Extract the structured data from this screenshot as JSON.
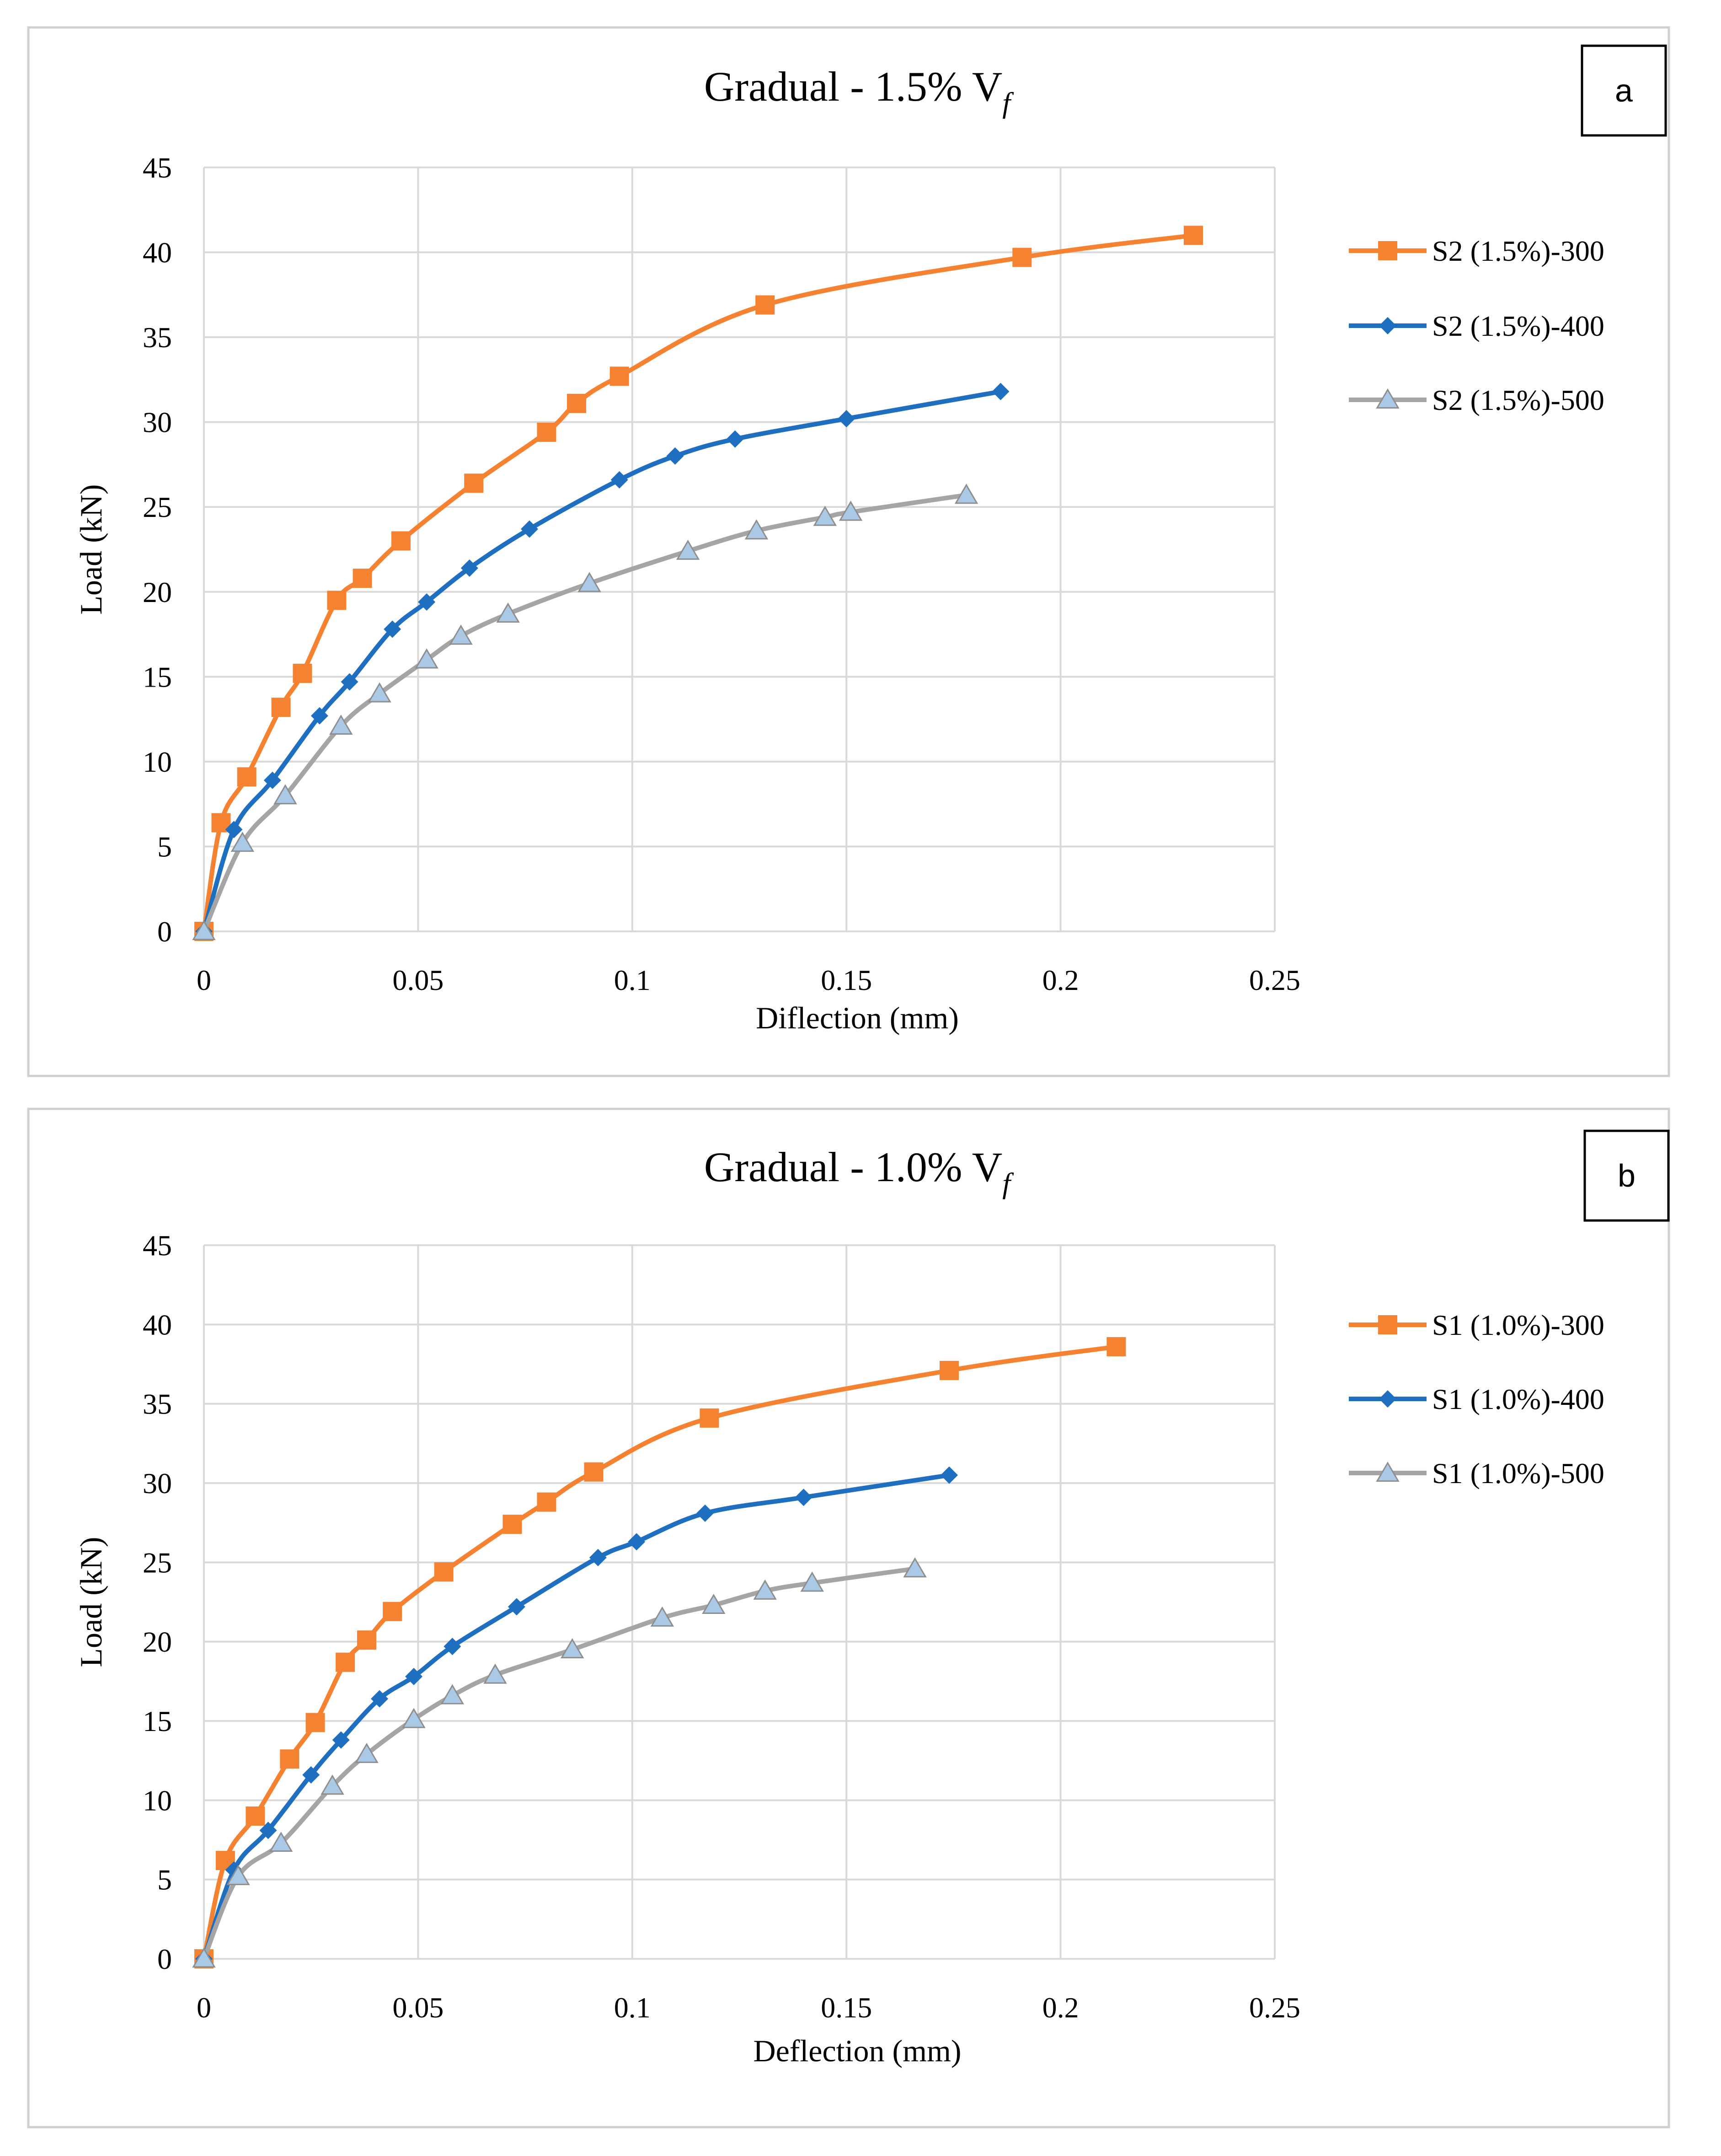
{
  "chart_data": [
    {
      "type": "line",
      "panel_label": "a",
      "title": "Gradual - 1.5% V",
      "title_subscript": "f",
      "xlabel": "Diflection (mm)",
      "ylabel": "Load (kN)",
      "xlim": [
        0,
        0.25
      ],
      "ylim": [
        0,
        45
      ],
      "x_ticks": [
        0,
        0.05,
        0.1,
        0.15,
        0.2,
        0.25
      ],
      "x_tick_labels": [
        "0",
        "0.05",
        "0.1",
        "0.15",
        "0.2",
        "0.25"
      ],
      "y_ticks": [
        0,
        5,
        10,
        15,
        20,
        25,
        30,
        35,
        40,
        45
      ],
      "y_tick_labels": [
        "0",
        "5",
        "10",
        "15",
        "20",
        "25",
        "30",
        "35",
        "40",
        "45"
      ],
      "grid": true,
      "legend_position": "right",
      "series": [
        {
          "name": "S2 (1.5%)-300",
          "color": "#F58231",
          "marker": "square",
          "x": [
            0,
            0.004,
            0.01,
            0.018,
            0.023,
            0.031,
            0.037,
            0.046,
            0.063,
            0.08,
            0.087,
            0.097,
            0.131,
            0.191,
            0.231
          ],
          "y": [
            0,
            6.4,
            9.1,
            13.2,
            15.2,
            19.5,
            20.8,
            23.0,
            26.4,
            29.4,
            31.1,
            32.7,
            36.9,
            39.7,
            41.0
          ]
        },
        {
          "name": "S2 (1.5%)-400",
          "color": "#1F6FC1",
          "marker": "diamond",
          "x": [
            0,
            0.007,
            0.016,
            0.027,
            0.034,
            0.044,
            0.052,
            0.062,
            0.076,
            0.097,
            0.11,
            0.124,
            0.15,
            0.186
          ],
          "y": [
            0,
            6.0,
            8.9,
            12.7,
            14.7,
            17.8,
            19.4,
            21.4,
            23.7,
            26.6,
            28.0,
            29.0,
            30.2,
            31.8
          ]
        },
        {
          "name": "S2 (1.5%)-500",
          "color": "#A5A5A5",
          "marker": "triangle",
          "x": [
            0,
            0.009,
            0.019,
            0.032,
            0.041,
            0.052,
            0.06,
            0.071,
            0.09,
            0.113,
            0.129,
            0.145,
            0.151,
            0.178
          ],
          "y": [
            0,
            5.2,
            8.0,
            12.1,
            14.0,
            16.0,
            17.4,
            18.7,
            20.5,
            22.4,
            23.6,
            24.4,
            24.7,
            25.7
          ]
        }
      ]
    },
    {
      "type": "line",
      "panel_label": "b",
      "title": "Gradual - 1.0% V",
      "title_subscript": "f",
      "xlabel": "Deflection (mm)",
      "ylabel": "Load (kN)",
      "xlim": [
        0,
        0.25
      ],
      "ylim": [
        0,
        45
      ],
      "x_ticks": [
        0,
        0.05,
        0.1,
        0.15,
        0.2,
        0.25
      ],
      "x_tick_labels": [
        "0",
        "0.05",
        "0.1",
        "0.15",
        "0.2",
        "0.25"
      ],
      "y_ticks": [
        0,
        5,
        10,
        15,
        20,
        25,
        30,
        35,
        40,
        45
      ],
      "y_tick_labels": [
        "0",
        "5",
        "10",
        "15",
        "20",
        "25",
        "30",
        "35",
        "40",
        "45"
      ],
      "grid": true,
      "legend_position": "right",
      "series": [
        {
          "name": "S1 (1.0%)-300",
          "color": "#F58231",
          "marker": "square",
          "x": [
            0,
            0.005,
            0.012,
            0.02,
            0.026,
            0.033,
            0.038,
            0.044,
            0.056,
            0.072,
            0.08,
            0.091,
            0.118,
            0.174,
            0.213
          ],
          "y": [
            0,
            6.2,
            9.0,
            12.6,
            14.9,
            18.7,
            20.1,
            21.9,
            24.4,
            27.4,
            28.8,
            30.7,
            34.1,
            37.1,
            38.6
          ]
        },
        {
          "name": "S1 (1.0%)-400",
          "color": "#1F6FC1",
          "marker": "diamond",
          "x": [
            0,
            0.007,
            0.015,
            0.025,
            0.032,
            0.041,
            0.049,
            0.058,
            0.073,
            0.092,
            0.101,
            0.117,
            0.14,
            0.174
          ],
          "y": [
            0,
            5.6,
            8.1,
            11.6,
            13.8,
            16.4,
            17.8,
            19.7,
            22.2,
            25.3,
            26.3,
            28.1,
            29.1,
            30.5
          ]
        },
        {
          "name": "S1 (1.0%)-500",
          "color": "#A5A5A5",
          "marker": "triangle",
          "x": [
            0,
            0.008,
            0.018,
            0.03,
            0.038,
            0.049,
            0.058,
            0.068,
            0.086,
            0.107,
            0.119,
            0.131,
            0.142,
            0.166
          ],
          "y": [
            0,
            5.2,
            7.3,
            10.9,
            12.9,
            15.1,
            16.6,
            17.9,
            19.5,
            21.5,
            22.3,
            23.2,
            23.7,
            24.6
          ]
        }
      ]
    }
  ]
}
